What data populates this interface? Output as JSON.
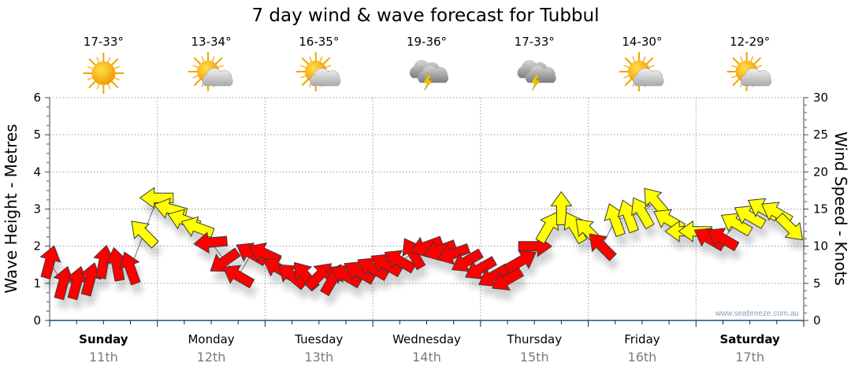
{
  "chart_data": {
    "type": "scatter",
    "title": "7 day wind & wave forecast for Tubbul",
    "ylabel": "Wave Height - Metres",
    "y2label": "Wind Speed - Knots",
    "ylim": [
      0,
      6
    ],
    "y2lim": [
      0,
      30
    ],
    "yticks": [
      "0",
      "1",
      "2",
      "3",
      "4",
      "5",
      "6"
    ],
    "y2ticks": [
      "0",
      "5",
      "10",
      "15",
      "20",
      "25",
      "30"
    ],
    "grid": true,
    "watermark": "www.seabreeze.com.au",
    "days": [
      {
        "name": "Sunday",
        "date": "11th",
        "bold": true,
        "temp": "17-33°",
        "icon": "sunny"
      },
      {
        "name": "Monday",
        "date": "12th",
        "bold": false,
        "temp": "13-34°",
        "icon": "partly-cloudy"
      },
      {
        "name": "Tuesday",
        "date": "13th",
        "bold": false,
        "temp": "16-35°",
        "icon": "partly-cloudy"
      },
      {
        "name": "Wednesday",
        "date": "14th",
        "bold": false,
        "temp": "19-36°",
        "icon": "thunderstorm"
      },
      {
        "name": "Thursday",
        "date": "15th",
        "bold": false,
        "temp": "17-33°",
        "icon": "thunderstorm"
      },
      {
        "name": "Friday",
        "date": "16th",
        "bold": false,
        "temp": "14-30°",
        "icon": "partly-cloudy"
      },
      {
        "name": "Saturday",
        "date": "17th",
        "bold": true,
        "temp": "12-29°",
        "icon": "partly-cloudy"
      }
    ],
    "palette": {
      "r": "#ff0000",
      "y": "#ffff00"
    },
    "wind_series": {
      "name": "Wind",
      "fields": [
        "hour",
        "knots",
        "direction_deg",
        "color"
      ],
      "points": [
        [
          0,
          7.8,
          15,
          "r"
        ],
        [
          3,
          5,
          15,
          "r"
        ],
        [
          6,
          5,
          15,
          "r"
        ],
        [
          9,
          5.5,
          15,
          "r"
        ],
        [
          12,
          7.8,
          10,
          "r"
        ],
        [
          15,
          7.5,
          350,
          "r"
        ],
        [
          18,
          7,
          340,
          "r"
        ],
        [
          21,
          11.7,
          315,
          "y"
        ],
        [
          24,
          16.5,
          270,
          "y"
        ],
        [
          27,
          15,
          285,
          "y"
        ],
        [
          30,
          13.5,
          290,
          "y"
        ],
        [
          33,
          12.5,
          290,
          "y"
        ],
        [
          36,
          10.5,
          265,
          "r"
        ],
        [
          39,
          8,
          235,
          "r"
        ],
        [
          42,
          6,
          300,
          "r"
        ],
        [
          45,
          9,
          300,
          "r"
        ],
        [
          48,
          9,
          295,
          "r"
        ],
        [
          51,
          7,
          300,
          "r"
        ],
        [
          54,
          6,
          310,
          "r"
        ],
        [
          57,
          6,
          320,
          "r"
        ],
        [
          60,
          6,
          45,
          "r"
        ],
        [
          63,
          5.5,
          30,
          "r"
        ],
        [
          66,
          6,
          300,
          "r"
        ],
        [
          69,
          6.5,
          300,
          "r"
        ],
        [
          72,
          7,
          300,
          "r"
        ],
        [
          75,
          7.5,
          300,
          "r"
        ],
        [
          78,
          8,
          300,
          "r"
        ],
        [
          81,
          9,
          330,
          "r"
        ],
        [
          84,
          10,
          250,
          "r"
        ],
        [
          87,
          9.5,
          250,
          "r"
        ],
        [
          90,
          9,
          250,
          "r"
        ],
        [
          93,
          8,
          240,
          "r"
        ],
        [
          96,
          7,
          240,
          "r"
        ],
        [
          99,
          6,
          240,
          "r"
        ],
        [
          102,
          5.5,
          240,
          "r"
        ],
        [
          105,
          8,
          60,
          "r"
        ],
        [
          108,
          10,
          90,
          "r"
        ],
        [
          111,
          12.5,
          30,
          "y"
        ],
        [
          114,
          15,
          0,
          "y"
        ],
        [
          117,
          12.5,
          330,
          "y"
        ],
        [
          120,
          12,
          315,
          "y"
        ],
        [
          123,
          10,
          315,
          "r"
        ],
        [
          126,
          13.5,
          340,
          "y"
        ],
        [
          129,
          14,
          340,
          "y"
        ],
        [
          132,
          14.5,
          330,
          "y"
        ],
        [
          135,
          16,
          320,
          "y"
        ],
        [
          138,
          13.5,
          300,
          "y"
        ],
        [
          141,
          12,
          270,
          "y"
        ],
        [
          144,
          12,
          270,
          "y"
        ],
        [
          147,
          11,
          300,
          "r"
        ],
        [
          150,
          11,
          300,
          "r"
        ],
        [
          153,
          13,
          300,
          "y"
        ],
        [
          156,
          14,
          300,
          "y"
        ],
        [
          159,
          15,
          300,
          "y"
        ],
        [
          162,
          14.5,
          300,
          "y"
        ],
        [
          165,
          12.5,
          135,
          "y"
        ]
      ]
    }
  }
}
